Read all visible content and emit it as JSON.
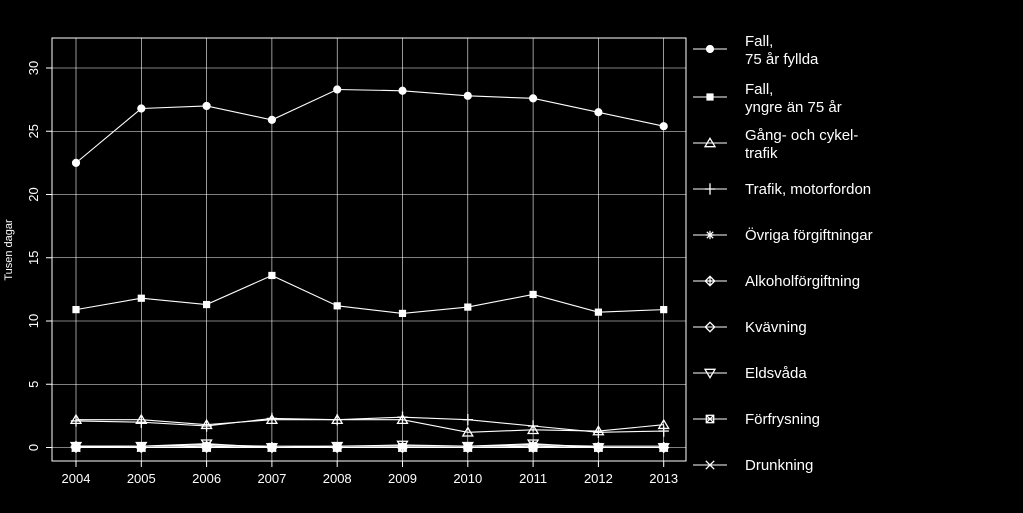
{
  "chart_data": {
    "type": "line",
    "ylabel": "Tusen dagar",
    "xlabel": "",
    "x": [
      2004,
      2005,
      2006,
      2007,
      2008,
      2009,
      2010,
      2011,
      2012,
      2013
    ],
    "ylim": [
      0,
      32.5
    ],
    "yticks": [
      0,
      5,
      10,
      15,
      20,
      25,
      30
    ],
    "grid": true,
    "legend_placement": "right",
    "colors": {
      "background": "#000000",
      "foreground": "#ffffff"
    },
    "series": [
      {
        "name_lines": [
          "Fall,",
          "75 år fyllda"
        ],
        "marker": "filled-circle",
        "values": [
          22.5,
          26.8,
          27.0,
          25.9,
          28.3,
          28.2,
          27.8,
          27.6,
          26.5,
          25.4
        ]
      },
      {
        "name_lines": [
          "Fall,",
          "yngre än 75 år"
        ],
        "marker": "filled-square",
        "values": [
          10.9,
          11.8,
          11.3,
          13.6,
          11.2,
          10.6,
          11.1,
          12.1,
          10.7,
          10.9
        ]
      },
      {
        "name_lines": [
          "Gång- och cykel-",
          "trafik"
        ],
        "marker": "triangle",
        "values": [
          2.2,
          2.2,
          1.8,
          2.2,
          2.2,
          2.2,
          1.2,
          1.4,
          1.3,
          1.8
        ]
      },
      {
        "name_lines": [
          "Trafik, motorfordon"
        ],
        "marker": "plus",
        "values": [
          2.1,
          2.0,
          1.7,
          2.3,
          2.2,
          2.4,
          2.2,
          1.7,
          1.2,
          1.3
        ]
      },
      {
        "name_lines": [
          "Övriga förgiftningar"
        ],
        "marker": "asterisk",
        "values": [
          0.1,
          0.1,
          0.2,
          0.1,
          0.1,
          0.1,
          0.1,
          0.2,
          0.1,
          0.1
        ]
      },
      {
        "name_lines": [
          "Alkoholförgiftning"
        ],
        "marker": "diamond-plus",
        "values": [
          0.0,
          0.0,
          0.1,
          0.0,
          0.0,
          0.0,
          0.0,
          0.1,
          0.0,
          0.0
        ]
      },
      {
        "name_lines": [
          "Kvävning"
        ],
        "marker": "diamond",
        "values": [
          0.1,
          0.0,
          0.0,
          0.0,
          0.0,
          0.0,
          0.0,
          0.0,
          0.0,
          0.0
        ]
      },
      {
        "name_lines": [
          "Eldsvåda"
        ],
        "marker": "triangle-down",
        "values": [
          0.1,
          0.1,
          0.3,
          0.0,
          0.1,
          0.2,
          0.1,
          0.3,
          0.0,
          0.0
        ]
      },
      {
        "name_lines": [
          "Förfrysning"
        ],
        "marker": "square-x",
        "values": [
          0.0,
          0.0,
          0.0,
          0.0,
          0.0,
          0.0,
          0.0,
          0.0,
          0.0,
          0.0
        ]
      },
      {
        "name_lines": [
          "Drunkning"
        ],
        "marker": "x",
        "values": [
          0.0,
          0.0,
          0.0,
          0.0,
          0.0,
          0.0,
          0.0,
          0.0,
          0.0,
          0.0
        ]
      }
    ]
  }
}
